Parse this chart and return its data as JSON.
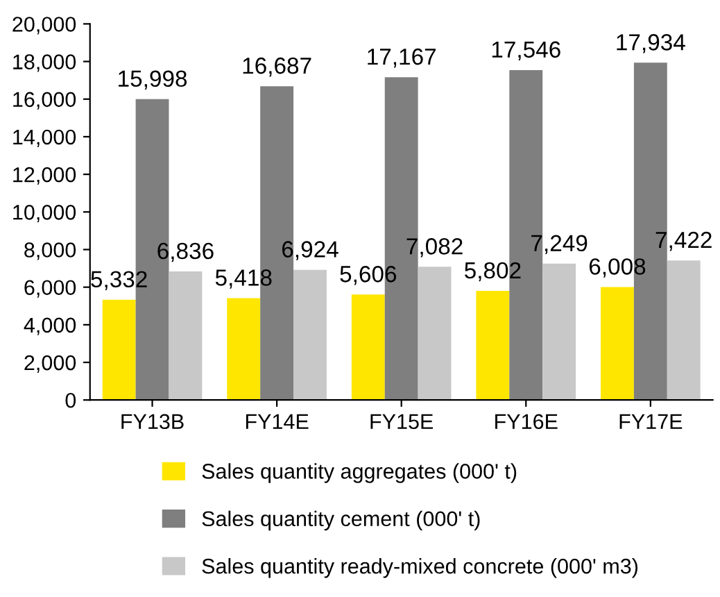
{
  "chart_data": {
    "type": "bar",
    "categories": [
      "FY13B",
      "FY14E",
      "FY15E",
      "FY16E",
      "FY17E"
    ],
    "series": [
      {
        "name": "Sales quantity aggregates (000' t)",
        "color": "#ffe600",
        "values": [
          5332,
          5418,
          5606,
          5802,
          6008
        ],
        "value_labels": [
          "5,332",
          "5,418",
          "5,606",
          "5,802",
          "6,008"
        ]
      },
      {
        "name": "Sales quantity cement (000' t)",
        "color": "#7f7f7f",
        "values": [
          15998,
          16687,
          17167,
          17546,
          17934
        ],
        "value_labels": [
          "15,998",
          "16,687",
          "17,167",
          "17,546",
          "17,934"
        ]
      },
      {
        "name": "Sales quantity ready-mixed concrete (000' m3)",
        "color": "#c8c8c8",
        "values": [
          6836,
          6924,
          7082,
          7249,
          7422
        ],
        "value_labels": [
          "6,836",
          "6,924",
          "7,082",
          "7,249",
          "7,422"
        ]
      }
    ],
    "ylim": [
      0,
      20000
    ],
    "yticks": [
      0,
      {
        "value": 2000,
        "label": "2,000"
      },
      {
        "value": 4000,
        "label": "4,000"
      },
      {
        "value": 6000,
        "label": "6,000"
      },
      {
        "value": 8000,
        "label": "8,000"
      },
      {
        "value": 10000,
        "label": "10,000"
      },
      {
        "value": 12000,
        "label": "12,000"
      },
      {
        "value": 14000,
        "label": "14,000"
      },
      {
        "value": 16000,
        "label": "16,000"
      },
      {
        "value": 18000,
        "label": "18,000"
      },
      {
        "value": 20000,
        "label": "20,000"
      }
    ],
    "grid": false,
    "legend": "bottom"
  }
}
